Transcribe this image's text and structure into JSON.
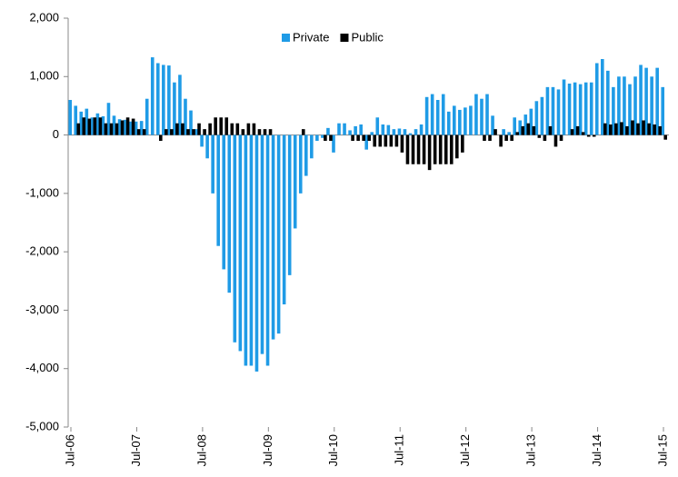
{
  "chart_data": {
    "type": "bar",
    "categories": [
      "Jul-06",
      null,
      null,
      null,
      null,
      null,
      null,
      null,
      null,
      null,
      null,
      null,
      "Jul-07",
      null,
      null,
      null,
      null,
      null,
      null,
      null,
      null,
      null,
      null,
      null,
      "Jul-08",
      null,
      null,
      null,
      null,
      null,
      null,
      null,
      null,
      null,
      null,
      null,
      "Jul-09",
      null,
      null,
      null,
      null,
      null,
      null,
      null,
      null,
      null,
      null,
      null,
      "Jul-10",
      null,
      null,
      null,
      null,
      null,
      null,
      null,
      null,
      null,
      null,
      null,
      "Jul-11",
      null,
      null,
      null,
      null,
      null,
      null,
      null,
      null,
      null,
      null,
      null,
      "Jul-12",
      null,
      null,
      null,
      null,
      null,
      null,
      null,
      null,
      null,
      null,
      null,
      "Jul-13",
      null,
      null,
      null,
      null,
      null,
      null,
      null,
      null,
      null,
      null,
      null,
      "Jul-14",
      null,
      null,
      null,
      null,
      null,
      null,
      null,
      null,
      null,
      null,
      null,
      "Jul-15"
    ],
    "series": [
      {
        "name": "Private",
        "color": "#1f9be6",
        "values": [
          600,
          500,
          400,
          450,
          300,
          370,
          320,
          550,
          330,
          270,
          260,
          230,
          230,
          240,
          620,
          1330,
          1230,
          1200,
          1190,
          900,
          1030,
          620,
          420,
          100,
          -200,
          -400,
          -1000,
          -1900,
          -2300,
          -2700,
          -3550,
          -3700,
          -3950,
          -3950,
          -4050,
          -3750,
          -3950,
          -3500,
          -3400,
          -2900,
          -2400,
          -1600,
          -1000,
          -700,
          -400,
          -100,
          -50,
          120,
          -300,
          200,
          200,
          80,
          150,
          180,
          -250,
          50,
          300,
          180,
          170,
          100,
          110,
          100,
          30,
          100,
          180,
          650,
          700,
          600,
          700,
          400,
          500,
          430,
          470,
          500,
          700,
          620,
          700,
          330,
          0,
          100,
          50,
          300,
          250,
          350,
          450,
          580,
          650,
          820,
          820,
          780,
          950,
          880,
          900,
          870,
          900,
          900,
          1230,
          1300,
          1100,
          820,
          1000,
          1000,
          870,
          1000,
          1200,
          1150,
          1000,
          1150,
          820
        ]
      },
      {
        "name": "Public",
        "color": "#000000",
        "values": [
          0,
          200,
          300,
          280,
          300,
          300,
          200,
          200,
          200,
          250,
          300,
          280,
          100,
          100,
          0,
          0,
          -100,
          100,
          100,
          200,
          200,
          100,
          100,
          200,
          100,
          200,
          300,
          300,
          300,
          200,
          200,
          100,
          200,
          200,
          100,
          100,
          100,
          0,
          0,
          0,
          0,
          0,
          100,
          0,
          0,
          0,
          -100,
          -100,
          0,
          0,
          0,
          -100,
          -100,
          -100,
          -100,
          -200,
          -200,
          -200,
          -200,
          -200,
          -300,
          -500,
          -500,
          -500,
          -500,
          -600,
          -500,
          -500,
          -500,
          -500,
          -400,
          -300,
          0,
          0,
          0,
          -100,
          -100,
          100,
          -200,
          -100,
          -100,
          50,
          150,
          200,
          150,
          -50,
          -100,
          150,
          -200,
          -100,
          0,
          100,
          150,
          50,
          -30,
          -30,
          0,
          200,
          180,
          200,
          220,
          150,
          250,
          200,
          250,
          200,
          180,
          150,
          -80
        ]
      }
    ],
    "ylim": [
      -5000,
      2000
    ],
    "yticks": [
      {
        "value": -5000,
        "label": "-5,000"
      },
      {
        "value": -4000,
        "label": "-4,000"
      },
      {
        "value": -3000,
        "label": "-3,000"
      },
      {
        "value": -2000,
        "label": "-2,000"
      },
      {
        "value": -1000,
        "label": "-1,000"
      },
      0,
      {
        "value": 1000,
        "label": "1,000"
      },
      {
        "value": 2000,
        "label": "2,000"
      }
    ],
    "grid": false,
    "legend": "top"
  }
}
